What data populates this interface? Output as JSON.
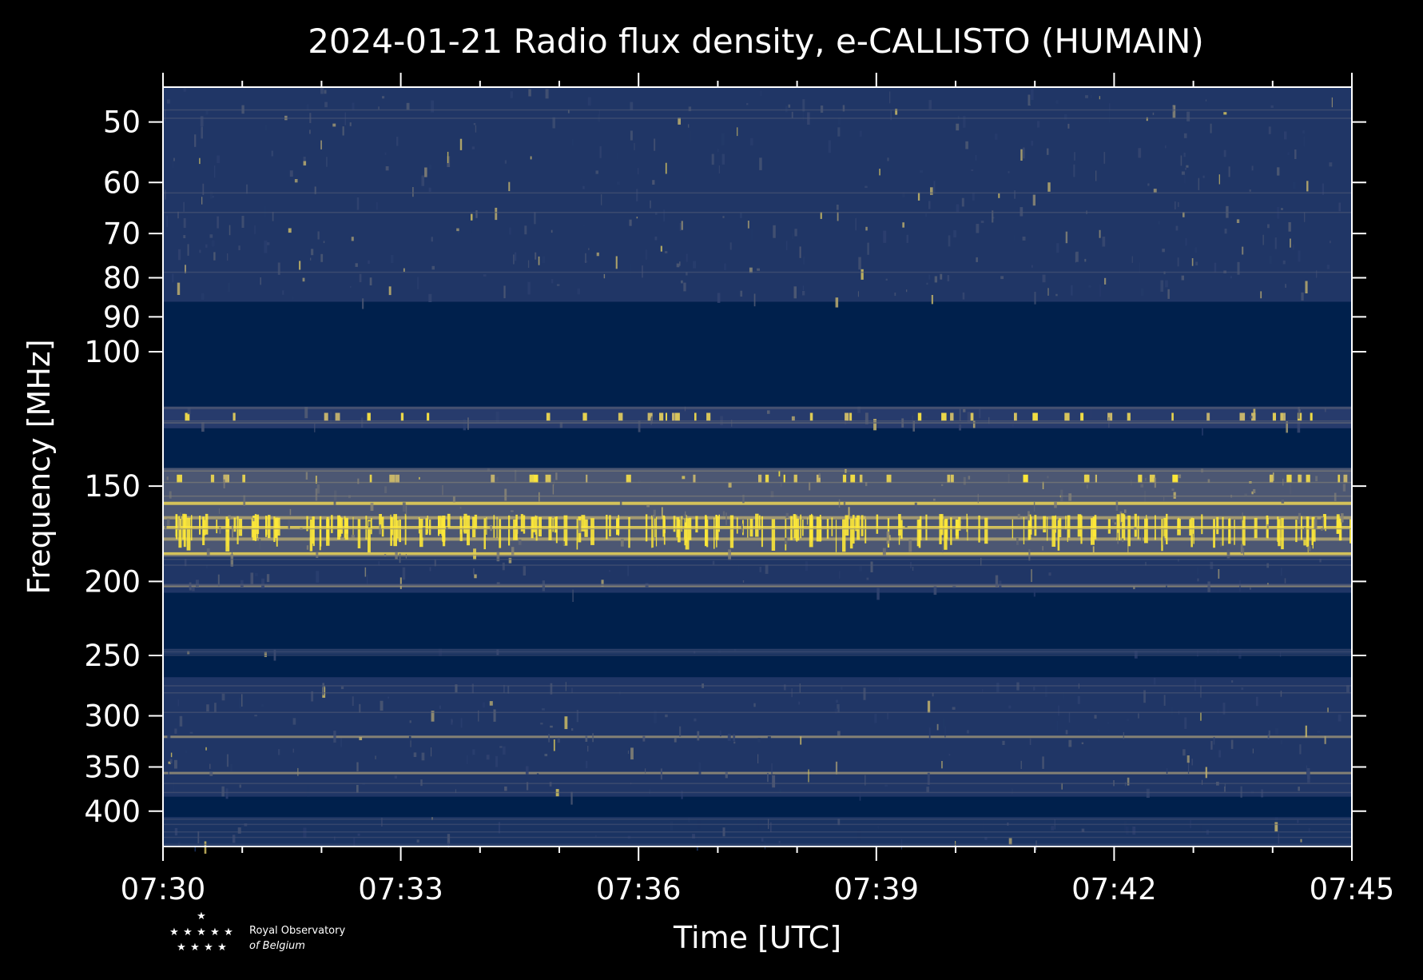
{
  "chart_data": {
    "type": "heatmap",
    "title": "2024-01-21 Radio flux density, e-CALLISTO (HUMAIN)",
    "xlabel": "Time [UTC]",
    "ylabel": "Frequency [MHz]",
    "x_ticks": [
      "07:30",
      "07:33",
      "07:36",
      "07:39",
      "07:42",
      "07:45"
    ],
    "x_range_minutes": [
      0,
      15
    ],
    "y_scale": "log",
    "y_ticks": [
      50,
      60,
      70,
      80,
      90,
      100,
      150,
      200,
      250,
      300,
      350,
      400
    ],
    "y_range": [
      45,
      445
    ],
    "grid": false,
    "colormap": [
      "#00204c",
      "#2c3f70",
      "#7c7b78",
      "#c4b36d",
      "#fde838"
    ],
    "bands": [
      {
        "f_from": 45,
        "f_to": 86,
        "level": 0.18
      },
      {
        "f_from": 86,
        "f_to": 118,
        "level": 0.0
      },
      {
        "f_from": 118,
        "f_to": 126,
        "level": 0.22
      },
      {
        "f_from": 126,
        "f_to": 142,
        "level": 0.0
      },
      {
        "f_from": 142,
        "f_to": 186,
        "level": 0.35
      },
      {
        "f_from": 186,
        "f_to": 207,
        "level": 0.18
      },
      {
        "f_from": 207,
        "f_to": 245,
        "level": 0.0
      },
      {
        "f_from": 245,
        "f_to": 250,
        "level": 0.12
      },
      {
        "f_from": 250,
        "f_to": 267,
        "level": 0.0
      },
      {
        "f_from": 267,
        "f_to": 383,
        "level": 0.18
      },
      {
        "f_from": 383,
        "f_to": 407,
        "level": 0.0
      },
      {
        "f_from": 407,
        "f_to": 445,
        "level": 0.15
      }
    ],
    "bright_lines_mhz": [
      158,
      165,
      170,
      176,
      184,
      357,
      320,
      203
    ],
    "logo": {
      "line1": "Royal Observatory",
      "line2": "of Belgium"
    }
  }
}
